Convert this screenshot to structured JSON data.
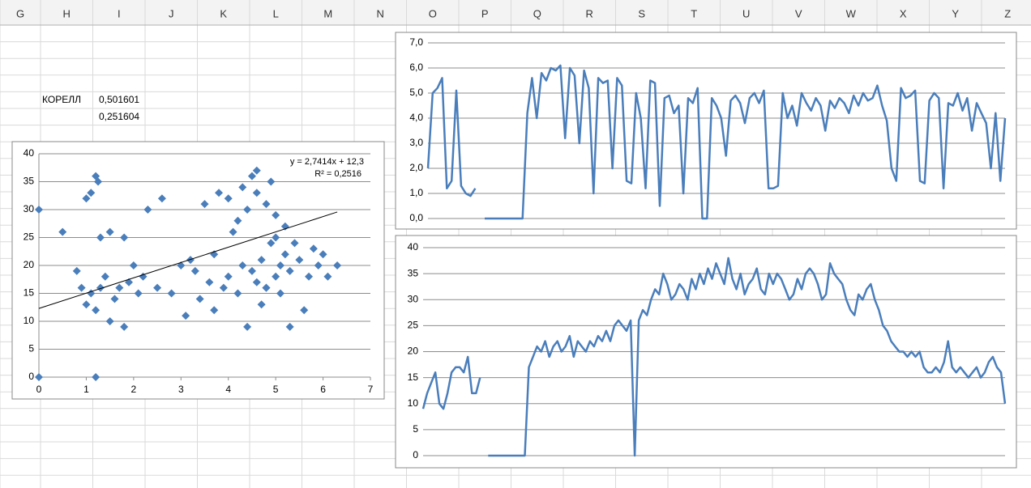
{
  "spreadsheet": {
    "columns": [
      "G",
      "H",
      "I",
      "J",
      "K",
      "L",
      "M",
      "N",
      "O",
      "P",
      "Q",
      "R",
      "S",
      "T",
      "U",
      "V",
      "W",
      "X",
      "Y",
      "Z"
    ],
    "cells": [
      "КОРЕЛЛ",
      "0,501601",
      "0,251604"
    ]
  },
  "chart_data": [
    {
      "type": "scatter",
      "color": "#4a7ebb",
      "grid": true,
      "xlim": [
        0,
        7
      ],
      "xticks": [
        0,
        1,
        2,
        3,
        4,
        5,
        6,
        7
      ],
      "ylim": [
        0,
        40
      ],
      "yticks": [
        0,
        5,
        10,
        15,
        20,
        25,
        30,
        35,
        40
      ],
      "x": [
        0,
        0,
        1.2,
        0.5,
        0.8,
        0.9,
        1.0,
        1.0,
        1.1,
        1.1,
        1.2,
        1.2,
        1.25,
        1.3,
        1.3,
        1.4,
        1.5,
        1.5,
        1.6,
        1.7,
        1.8,
        1.8,
        1.9,
        2.0,
        2.1,
        2.2,
        2.3,
        2.5,
        2.6,
        2.8,
        3.0,
        3.1,
        3.2,
        3.3,
        3.4,
        3.5,
        3.6,
        3.7,
        3.8,
        3.9,
        4.0,
        4.0,
        4.1,
        4.2,
        4.3,
        4.3,
        4.4,
        4.5,
        4.5,
        4.6,
        4.6,
        4.7,
        4.7,
        4.8,
        4.8,
        4.9,
        4.9,
        5.0,
        5.0,
        5.1,
        5.1,
        5.2,
        5.2,
        5.3,
        5.4,
        5.5,
        5.6,
        5.7,
        5.8,
        5.9,
        6.0,
        6.1,
        6.3,
        4.6,
        4.4,
        4.2,
        5.0,
        5.3,
        3.7,
        4.8
      ],
      "y": [
        30,
        0,
        0,
        26,
        19,
        16,
        32,
        13,
        33,
        15,
        36,
        12,
        35,
        25,
        16,
        18,
        26,
        10,
        14,
        16,
        25,
        9,
        17,
        20,
        15,
        18,
        30,
        16,
        32,
        15,
        20,
        11,
        21,
        19,
        14,
        31,
        17,
        22,
        33,
        16,
        32,
        18,
        26,
        15,
        34,
        20,
        30,
        19,
        36,
        17,
        33,
        21,
        13,
        31,
        16,
        35,
        24,
        18,
        29,
        20,
        15,
        22,
        27,
        19,
        24,
        21,
        12,
        18,
        23,
        20,
        22,
        18,
        20,
        37,
        9,
        28,
        25,
        9,
        12,
        16
      ]
    },
    {
      "type": "line",
      "color": "#4a7ebb",
      "grid": true,
      "ylim": [
        0,
        7
      ],
      "yticks": [
        {
          "value": 0,
          "label": "0,0"
        },
        {
          "value": 1,
          "label": "1,0"
        },
        {
          "value": 2,
          "label": "2,0"
        },
        {
          "value": 3,
          "label": "3,0"
        },
        {
          "value": 4,
          "label": "4,0"
        },
        {
          "value": 5,
          "label": "5,0"
        },
        {
          "value": 6,
          "label": "6,0"
        },
        {
          "value": 7,
          "label": "7,0"
        }
      ],
      "values": [
        2.0,
        5.0,
        5.2,
        5.6,
        1.2,
        1.5,
        5.1,
        1.3,
        1.0,
        0.9,
        1.2,
        null,
        0,
        0,
        0,
        0,
        0,
        0,
        0,
        0,
        0,
        4.2,
        5.6,
        4.0,
        5.8,
        5.5,
        6.0,
        5.9,
        6.1,
        3.2,
        6.0,
        5.7,
        3.0,
        5.9,
        5.2,
        1.0,
        5.6,
        5.4,
        5.5,
        2.0,
        5.6,
        5.3,
        1.5,
        1.4,
        5.0,
        4.0,
        1.2,
        5.5,
        5.4,
        0.5,
        4.8,
        4.9,
        4.2,
        4.5,
        1.0,
        4.8,
        4.6,
        5.2,
        0.0,
        0.0,
        4.8,
        4.5,
        4.0,
        2.5,
        4.7,
        4.9,
        4.6,
        3.8,
        4.8,
        5.0,
        4.6,
        5.1,
        1.2,
        1.2,
        1.3,
        5.0,
        4.0,
        4.5,
        3.7,
        5.0,
        4.6,
        4.3,
        4.8,
        4.5,
        3.5,
        4.7,
        4.4,
        4.8,
        4.6,
        4.2,
        4.9,
        4.5,
        5.0,
        4.7,
        4.8,
        5.3,
        4.5,
        3.9,
        2.0,
        1.5,
        5.2,
        4.8,
        4.9,
        5.1,
        1.5,
        1.4,
        4.7,
        5.0,
        4.8,
        1.2,
        4.6,
        4.5,
        5.0,
        4.3,
        4.8,
        3.5,
        4.6,
        4.2,
        3.8,
        2.0,
        4.2,
        1.5,
        4.0
      ]
    },
    {
      "type": "line",
      "color": "#4a7ebb",
      "grid": true,
      "ylim": [
        0,
        40
      ],
      "yticks": [
        0,
        5,
        10,
        15,
        20,
        25,
        30,
        35,
        40
      ],
      "values": [
        9,
        12,
        14,
        16,
        10,
        9,
        12,
        16,
        17,
        17,
        16,
        19,
        12,
        12,
        15,
        null,
        0,
        0,
        0,
        0,
        0,
        0,
        0,
        0,
        0,
        0,
        17,
        19,
        21,
        20,
        22,
        19,
        21,
        22,
        20,
        21,
        23,
        19,
        22,
        21,
        20,
        22,
        21,
        23,
        22,
        24,
        22,
        25,
        26,
        25,
        24,
        26,
        0,
        26,
        28,
        27,
        30,
        32,
        31,
        35,
        33,
        30,
        31,
        33,
        32,
        30,
        34,
        32,
        35,
        33,
        36,
        34,
        37,
        35,
        33,
        38,
        34,
        32,
        35,
        31,
        33,
        34,
        36,
        32,
        31,
        35,
        33,
        35,
        34,
        32,
        30,
        31,
        34,
        32,
        35,
        36,
        35,
        33,
        30,
        31,
        37,
        35,
        34,
        33,
        30,
        28,
        27,
        31,
        30,
        32,
        33,
        30,
        28,
        25,
        24,
        22,
        21,
        20,
        20,
        19,
        20,
        19,
        20,
        17,
        16,
        16,
        17,
        16,
        18,
        22,
        17,
        16,
        17,
        16,
        15,
        16,
        17,
        15,
        16,
        18,
        19,
        17,
        16,
        10
      ]
    }
  ]
}
